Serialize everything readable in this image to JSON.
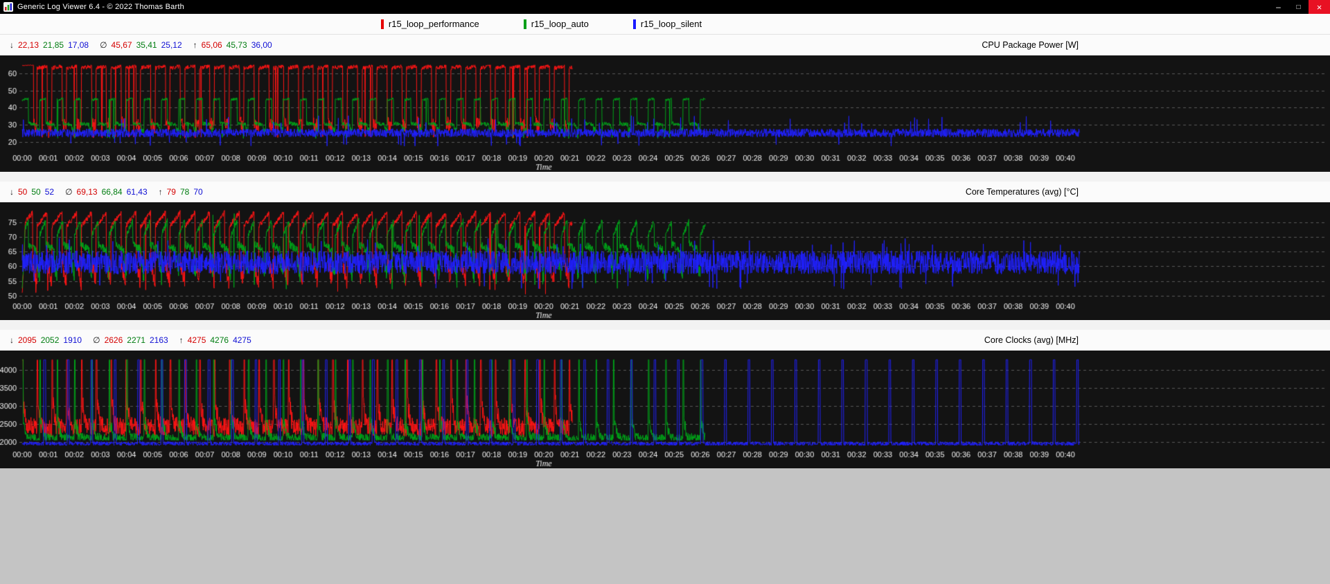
{
  "window": {
    "title": "Generic Log Viewer 6.4 - © 2022 Thomas Barth",
    "controls": {
      "minimize": "–",
      "maximize": "□",
      "close": "×"
    }
  },
  "ui_colors": {
    "red": "#d40000",
    "green": "#007d10",
    "blue": "#0f0fd4"
  },
  "legend": [
    {
      "label": "r15_loop_performance",
      "color": "#e60000"
    },
    {
      "label": "r15_loop_auto",
      "color": "#00a018"
    },
    {
      "label": "r15_loop_silent",
      "color": "#1a1aff"
    }
  ],
  "panels": [
    {
      "title": "CPU Package Power [W]",
      "stats": {
        "min_symbol": "↓",
        "avg_symbol": "∅",
        "max_symbol": "↑",
        "min": [
          "22,13",
          "21,85",
          "17,08"
        ],
        "avg": [
          "45,67",
          "35,41",
          "25,12"
        ],
        "max": [
          "65,06",
          "45,73",
          "36,00"
        ]
      }
    },
    {
      "title": "Core Temperatures (avg) [°C]",
      "stats": {
        "min_symbol": "↓",
        "avg_symbol": "∅",
        "max_symbol": "↑",
        "min": [
          "50",
          "50",
          "52"
        ],
        "avg": [
          "69,13",
          "66,84",
          "61,43"
        ],
        "max": [
          "79",
          "78",
          "70"
        ]
      }
    },
    {
      "title": "Core Clocks (avg) [MHz]",
      "stats": {
        "min_symbol": "↓",
        "avg_symbol": "∅",
        "max_symbol": "↑",
        "min": [
          "2095",
          "2052",
          "1910"
        ],
        "avg": [
          "2626",
          "2271",
          "2163"
        ],
        "max": [
          "4275",
          "4276",
          "4275"
        ]
      }
    }
  ],
  "time_axis": {
    "label": "Time",
    "ticks": [
      "00:00",
      "00:01",
      "00:02",
      "00:03",
      "00:04",
      "00:05",
      "00:06",
      "00:07",
      "00:08",
      "00:09",
      "00:10",
      "00:11",
      "00:12",
      "00:13",
      "00:14",
      "00:15",
      "00:16",
      "00:17",
      "00:18",
      "00:19",
      "00:20",
      "00:21",
      "00:22",
      "00:23",
      "00:24",
      "00:25",
      "00:26",
      "00:27",
      "00:28",
      "00:29",
      "00:30",
      "00:31",
      "00:32",
      "00:33",
      "00:34",
      "00:35",
      "00:36",
      "00:37",
      "00:38",
      "00:39",
      "00:40"
    ]
  },
  "chart_data": [
    {
      "type": "line",
      "title": "CPU Package Power [W]",
      "xlabel": "Time",
      "x_range_minutes": [
        0,
        40.6
      ],
      "y_ticks": [
        20,
        30,
        40,
        50,
        60
      ],
      "ylim": [
        15,
        69
      ],
      "grid": "horizontal-dashed",
      "background": "#131313",
      "legend_position": "top-of-window",
      "series": [
        {
          "name": "r15_loop_performance",
          "color": "#ff1414",
          "end_min": 21.1,
          "min": 22.13,
          "avg": 45.67,
          "max": 65.06,
          "wave": {
            "period_s": 34,
            "warmup": {
              "dur_s": 26,
              "v0": 64.7,
              "v1": 65.0,
              "j": 0.3
            },
            "segments": [
              {
                "f": 0.7,
                "v0": 63.2,
                "v1": 64.4,
                "j": 1.2
              },
              {
                "f": 0.3,
                "v0": 31.5,
                "v1": 28.5,
                "j": 4.2
              }
            ],
            "events": [
              {
                "p": 0.01,
                "v": 22.7,
                "j": 0.5
              }
            ]
          }
        },
        {
          "name": "r15_loop_auto",
          "color": "#00a418",
          "end_min": 26.2,
          "min": 21.85,
          "avg": 35.41,
          "max": 45.73,
          "wave": {
            "period_s": 40,
            "segments": [
              {
                "f": 0.36,
                "v0": 44.5,
                "v1": 45.4,
                "j": 0.8
              },
              {
                "f": 0.49,
                "v0": 30.8,
                "v1": 30.0,
                "j": 1.2
              },
              {
                "f": 0.15,
                "v0": 27.5,
                "v1": 26.5,
                "j": 1.8
              }
            ],
            "events": [
              {
                "p": 0.008,
                "v": 22.3,
                "j": 0.4
              }
            ]
          }
        },
        {
          "name": "r15_loop_silent",
          "color": "#2020ff",
          "end_min": 40.55,
          "min": 17.08,
          "avg": 25.12,
          "max": 36.0,
          "wave": {
            "base": 25.2,
            "j": 2.5,
            "events": [
              {
                "p": 0.012,
                "v": 33.2,
                "j": 2.4
              },
              {
                "p": 0.008,
                "v": 18.6,
                "j": 1.2
              }
            ]
          }
        }
      ]
    },
    {
      "type": "line",
      "title": "Core Temperatures (avg) [°C]",
      "xlabel": "Time",
      "x_range_minutes": [
        0,
        40.6
      ],
      "y_ticks": [
        50,
        55,
        60,
        65,
        70,
        75
      ],
      "ylim": [
        49,
        80.8
      ],
      "grid": "horizontal-dashed",
      "background": "#131313",
      "legend_position": "top-of-window",
      "series": [
        {
          "name": "r15_loop_performance",
          "color": "#ff1414",
          "end_min": 21.1,
          "min": 50,
          "avg": 69.13,
          "max": 79,
          "wave": {
            "period_s": 34,
            "warmup": {
              "dur_s": 7,
              "v0": 50.5,
              "v1": 73.0,
              "j": 1.5
            },
            "segments": [
              {
                "f": 0.7,
                "v0": 73.5,
                "v1": 78.3,
                "j": 0.9
              },
              {
                "f": 0.3,
                "v0": 61.0,
                "v1": 54.5,
                "j": 2.8
              }
            ],
            "events": [
              {
                "p": 0.005,
                "v": 51.5,
                "j": 1.0
              }
            ]
          }
        },
        {
          "name": "r15_loop_auto",
          "color": "#00a418",
          "end_min": 26.2,
          "min": 50,
          "avg": 66.84,
          "max": 78,
          "wave": {
            "period_s": 40,
            "warmup": {
              "dur_s": 6,
              "v0": 52.0,
              "v1": 68.0,
              "j": 1.5
            },
            "segments": [
              {
                "f": 0.36,
                "v0": 70.5,
                "v1": 75.5,
                "j": 1.0
              },
              {
                "f": 0.49,
                "v0": 67.5,
                "v1": 65.5,
                "j": 1.4
              },
              {
                "f": 0.15,
                "v0": 61.0,
                "v1": 56.5,
                "j": 2.6
              }
            ],
            "events": [
              {
                "p": 0.003,
                "v": 77.6,
                "j": 0.4
              },
              {
                "p": 0.004,
                "v": 53.0,
                "j": 1.0
              }
            ]
          }
        },
        {
          "name": "r15_loop_silent",
          "color": "#2020ff",
          "end_min": 40.55,
          "min": 52,
          "avg": 61.43,
          "max": 70,
          "wave": {
            "base": 61.3,
            "j": 4.0,
            "events": [
              {
                "p": 0.012,
                "v": 68.0,
                "j": 1.6
              },
              {
                "p": 0.008,
                "v": 53.6,
                "j": 1.5
              }
            ]
          }
        }
      ]
    },
    {
      "type": "line",
      "title": "Core Clocks (avg) [MHz]",
      "xlabel": "Time",
      "x_range_minutes": [
        0,
        40.6
      ],
      "y_ticks": [
        2000,
        2500,
        3000,
        3500,
        4000
      ],
      "ylim": [
        1870,
        4450
      ],
      "grid": "horizontal-dashed",
      "background": "#131313",
      "legend_position": "top-of-window",
      "series": [
        {
          "name": "r15_loop_performance",
          "color": "#ff1414",
          "end_min": 21.1,
          "min": 2095,
          "avg": 2626,
          "max": 4275,
          "wave": {
            "period_s": 34,
            "segments": [
              {
                "f": 0.07,
                "v0": 4268,
                "v1": 4275,
                "j": 6
              },
              {
                "f": 0.2,
                "v0": 3100,
                "v1": 2550,
                "j": 280
              },
              {
                "f": 0.73,
                "v0": 2480,
                "v1": 2380,
                "j": 250
              }
            ]
          }
        },
        {
          "name": "r15_loop_auto",
          "color": "#00a418",
          "end_min": 26.2,
          "min": 2052,
          "avg": 2271,
          "max": 4276,
          "wave": {
            "period_s": 40,
            "segments": [
              {
                "f": 0.055,
                "v0": 4270,
                "v1": 4276,
                "j": 5
              },
              {
                "f": 0.16,
                "v0": 2550,
                "v1": 2250,
                "j": 180
              },
              {
                "f": 0.785,
                "v0": 2160,
                "v1": 2090,
                "j": 110
              }
            ]
          }
        },
        {
          "name": "r15_loop_silent",
          "color": "#2020ff",
          "end_min": 40.55,
          "min": 1910,
          "avg": 2163,
          "max": 4275,
          "wave": {
            "period_s": 54,
            "segments": [
              {
                "f": 0.92,
                "v0": 1965,
                "v1": 1950,
                "j": 55
              },
              {
                "f": 0.08,
                "v0": 4270,
                "v1": 4275,
                "j": 5
              }
            ]
          }
        }
      ]
    }
  ]
}
